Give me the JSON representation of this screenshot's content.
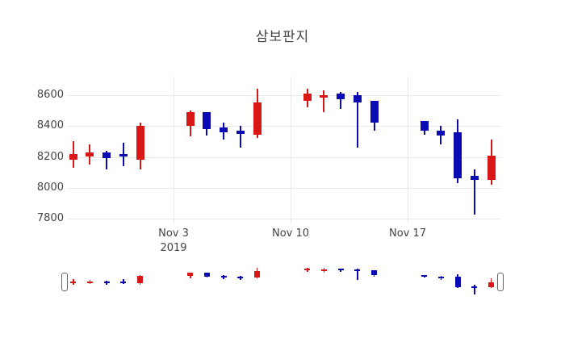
{
  "chart_data": {
    "type": "candlestick",
    "title": "삼보판지",
    "xlabel": "",
    "ylabel": "",
    "grid": true,
    "rangeslider": true,
    "colors": {
      "increasing": "#d91717",
      "decreasing": "#0b0bb4"
    },
    "y_axis_range": [
      7771,
      8717
    ],
    "y_ticks": [
      {
        "value": 7800,
        "label": "7800"
      },
      {
        "value": 8000,
        "label": "8000"
      },
      {
        "value": 8200,
        "label": "8200"
      },
      {
        "value": 8400,
        "label": "8400"
      },
      {
        "value": 8600,
        "label": "8600"
      }
    ],
    "x_ticks": [
      {
        "date": "2019-11-03",
        "lines": [
          "Nov 3",
          "2019"
        ]
      },
      {
        "date": "2019-11-10",
        "lines": [
          "Nov 10"
        ]
      },
      {
        "date": "2019-11-17",
        "lines": [
          "Nov 17"
        ]
      }
    ],
    "candles": [
      {
        "date": "2019-10-28",
        "open": 8180,
        "high": 8300,
        "low": 8130,
        "close": 8220
      },
      {
        "date": "2019-10-29",
        "open": 8200,
        "high": 8280,
        "low": 8150,
        "close": 8230
      },
      {
        "date": "2019-10-30",
        "open": 8230,
        "high": 8240,
        "low": 8120,
        "close": 8190
      },
      {
        "date": "2019-10-31",
        "open": 8220,
        "high": 8290,
        "low": 8140,
        "close": 8200
      },
      {
        "date": "2019-11-01",
        "open": 8180,
        "high": 8420,
        "low": 8120,
        "close": 8400
      },
      {
        "date": "2019-11-04",
        "open": 8400,
        "high": 8500,
        "low": 8330,
        "close": 8490
      },
      {
        "date": "2019-11-05",
        "open": 8490,
        "high": 8490,
        "low": 8340,
        "close": 8380
      },
      {
        "date": "2019-11-06",
        "open": 8390,
        "high": 8420,
        "low": 8310,
        "close": 8360
      },
      {
        "date": "2019-11-07",
        "open": 8370,
        "high": 8400,
        "low": 8260,
        "close": 8350
      },
      {
        "date": "2019-11-08",
        "open": 8340,
        "high": 8640,
        "low": 8320,
        "close": 8550
      },
      {
        "date": "2019-11-11",
        "open": 8560,
        "high": 8640,
        "low": 8520,
        "close": 8610
      },
      {
        "date": "2019-11-12",
        "open": 8580,
        "high": 8630,
        "low": 8490,
        "close": 8600
      },
      {
        "date": "2019-11-13",
        "open": 8610,
        "high": 8620,
        "low": 8510,
        "close": 8570
      },
      {
        "date": "2019-11-14",
        "open": 8600,
        "high": 8620,
        "low": 8260,
        "close": 8550
      },
      {
        "date": "2019-11-15",
        "open": 8560,
        "high": 8560,
        "low": 8370,
        "close": 8420
      },
      {
        "date": "2019-11-18",
        "open": 8430,
        "high": 8430,
        "low": 8340,
        "close": 8370
      },
      {
        "date": "2019-11-19",
        "open": 8370,
        "high": 8400,
        "low": 8280,
        "close": 8340
      },
      {
        "date": "2019-11-20",
        "open": 8360,
        "high": 8440,
        "low": 8030,
        "close": 8060
      },
      {
        "date": "2019-11-21",
        "open": 8080,
        "high": 8120,
        "low": 7830,
        "close": 8050
      },
      {
        "date": "2019-11-22",
        "open": 8050,
        "high": 8310,
        "low": 8020,
        "close": 8210
      }
    ]
  }
}
